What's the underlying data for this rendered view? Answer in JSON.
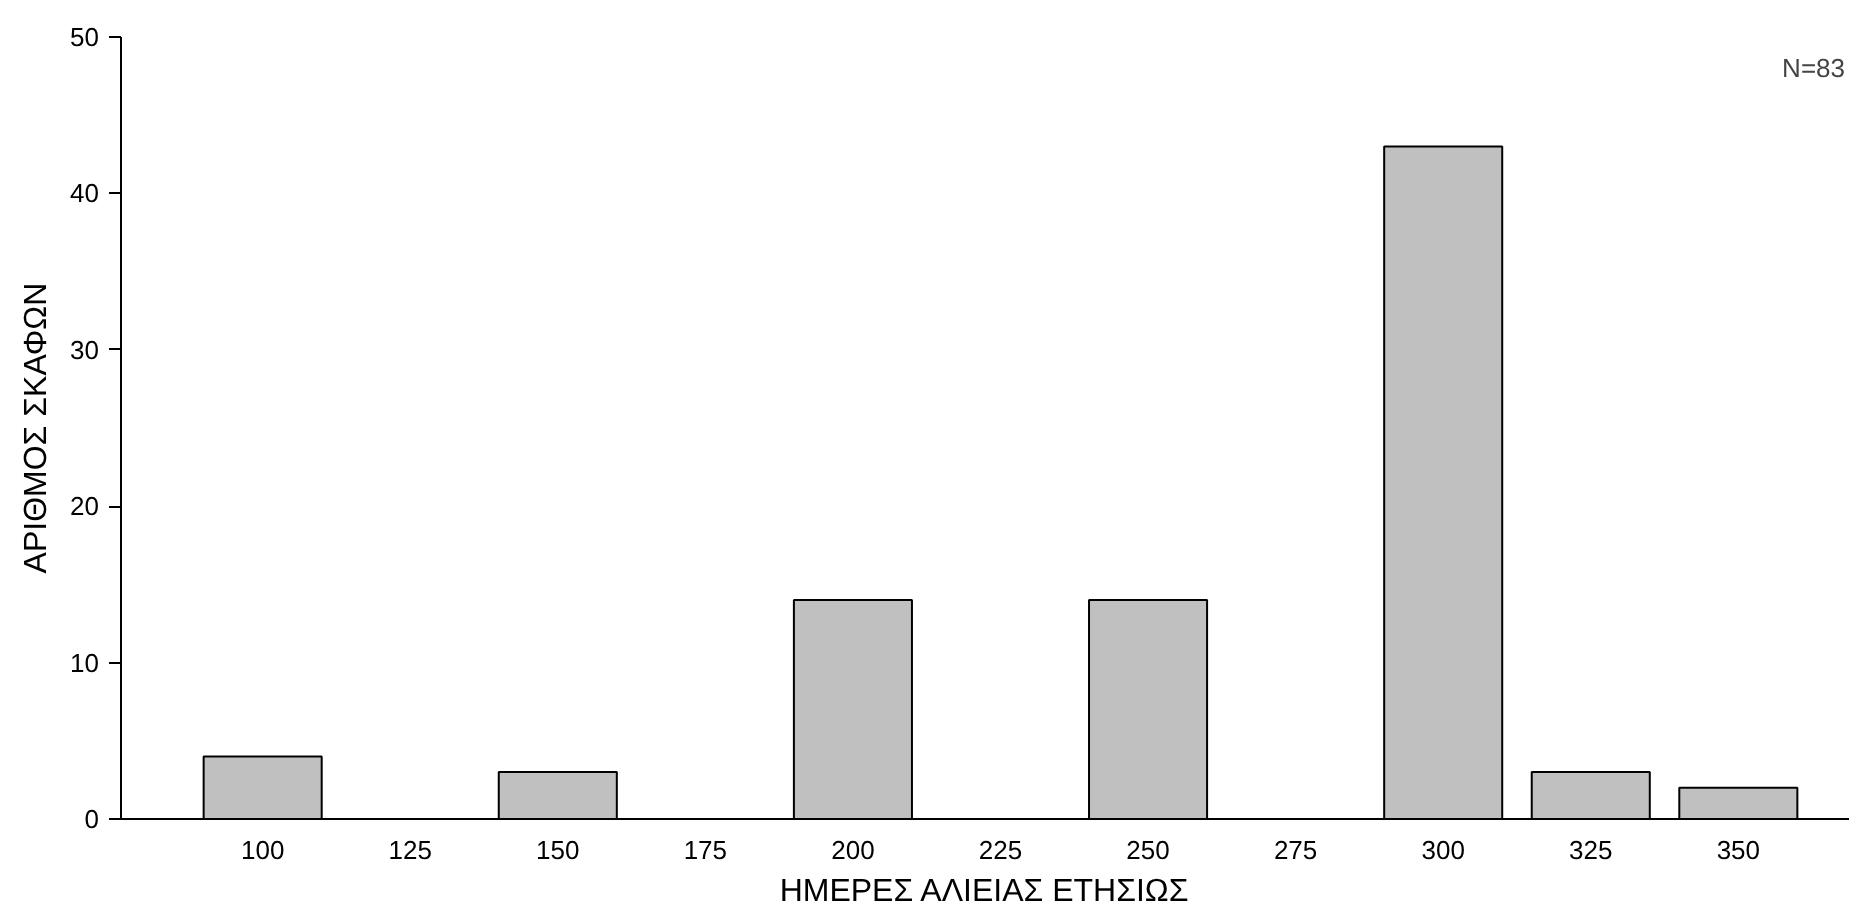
{
  "chart_data": {
    "type": "bar",
    "xlabel": "ΗΜΕΡΕΣ ΑΛΙΕΙΑΣ ΕΤΗΣΙΩΣ",
    "ylabel": "ΑΡΙΘΜΟΣ ΣΚΑΦΩΝ",
    "annotations": [
      "N=83"
    ],
    "categories": [
      "100",
      "125",
      "150",
      "175",
      "200",
      "225",
      "250",
      "275",
      "300",
      "325",
      "350"
    ],
    "values": [
      4,
      0,
      3,
      0,
      14,
      0,
      14,
      0,
      43,
      3,
      2
    ],
    "color": "#c0c0c0",
    "ylim": [
      0,
      50
    ],
    "yticks": [
      0,
      10,
      20,
      30,
      40,
      50
    ],
    "grid": false
  }
}
